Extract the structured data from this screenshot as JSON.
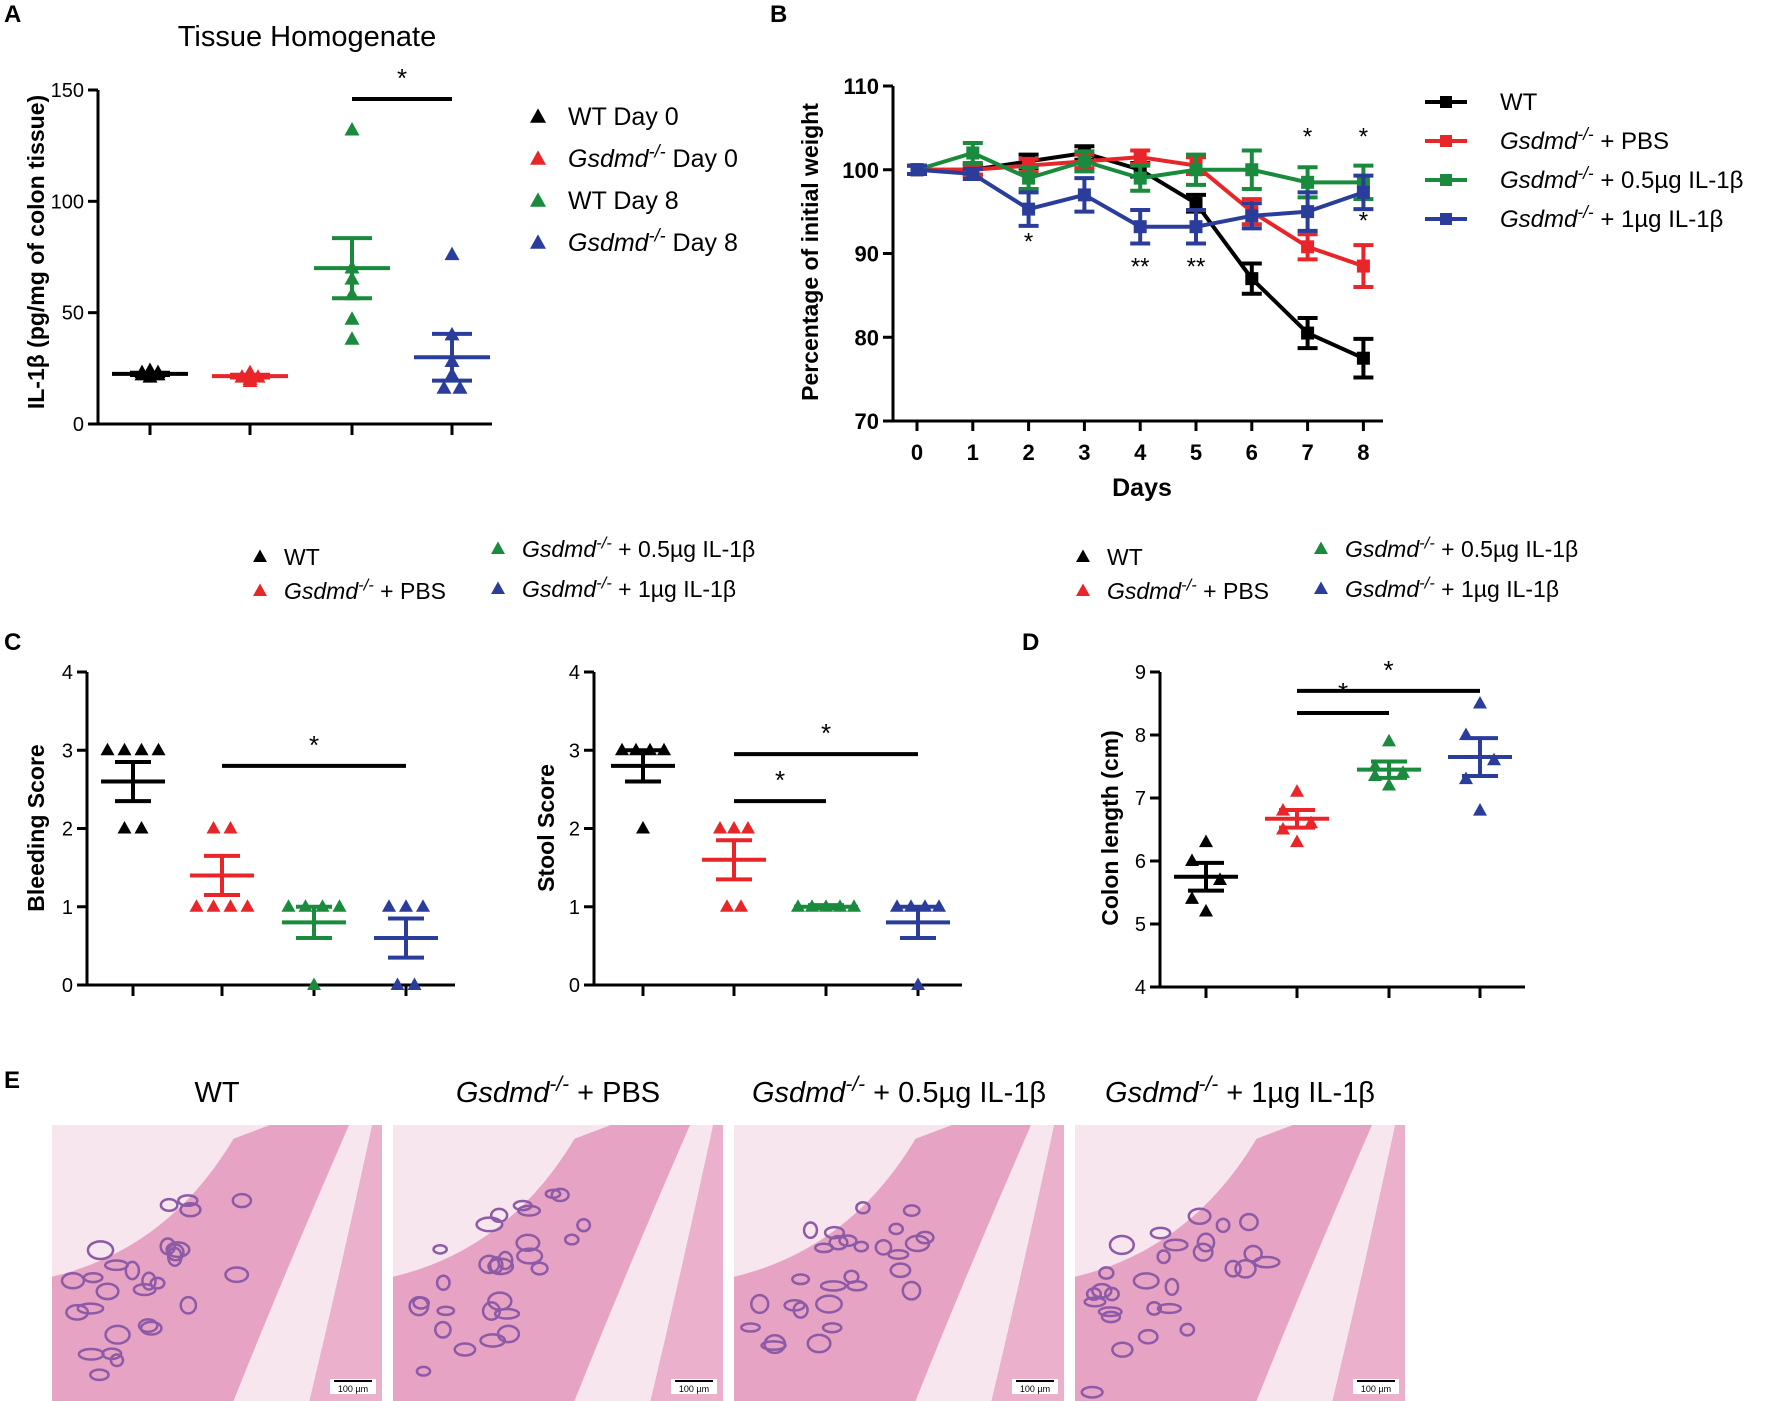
{
  "colors": {
    "black": "#000000",
    "red": "#e8262a",
    "green": "#1a8a3c",
    "blue": "#2b3d9b",
    "tissue_bg": "#f7e6ee",
    "tissue_pink": "#e7a3c3",
    "tissue_purple": "#8c5aa6"
  },
  "panel_letters": {
    "a": "A",
    "b": "B",
    "c": "C",
    "d": "D",
    "e": "E"
  },
  "legend_top": {
    "wt": "WT",
    "gs": "Gsdmd",
    "sup": "-/-",
    "pbs": "+ PBS",
    "low": "+ 0.5µg IL-1β",
    "high": "+ 1µg IL-1β"
  },
  "significance": {
    "star": "*",
    "double_star": "**"
  },
  "chart_data": [
    {
      "id": "A",
      "type": "scatter",
      "title": "Tissue Homogenate",
      "ylabel": "IL-1β  (pg/mg of colon tissue)",
      "ylim": [
        0,
        150
      ],
      "yticks": [
        "0",
        "50",
        "100",
        "150"
      ],
      "legend": [
        {
          "label": "WT Day 0",
          "color": "black",
          "italic": false
        },
        {
          "label": "Gsdmd",
          "sup": "-/-",
          "suffix": "Day 0",
          "color": "red",
          "italic": true
        },
        {
          "label": "WT Day 8",
          "color": "green",
          "italic": false
        },
        {
          "label": "Gsdmd",
          "sup": "-/-",
          "suffix": "Day 8",
          "color": "blue",
          "italic": true
        }
      ],
      "groups": [
        {
          "name": "WT Day 0",
          "color": "black",
          "points": [
            22,
            23,
            22,
            21,
            24,
            23
          ],
          "mean": 22.5,
          "sem": 0.5
        },
        {
          "name": "Gsdmd-/- Day 0",
          "color": "red",
          "points": [
            20,
            22,
            21,
            19,
            23,
            21
          ],
          "mean": 21.5,
          "sem": 0.6
        },
        {
          "name": "WT Day 8",
          "color": "green",
          "points": [
            132,
            70,
            65,
            58,
            47,
            38
          ],
          "mean": 70,
          "sem": 13.5
        },
        {
          "name": "Gsdmd-/- Day 8",
          "color": "blue",
          "points": [
            76,
            40,
            28,
            22,
            16,
            16
          ],
          "mean": 30,
          "sem": 10.5
        }
      ],
      "sig": [
        {
          "from": 2,
          "to": 3,
          "label": "*"
        }
      ]
    },
    {
      "id": "B",
      "type": "line",
      "ylabel": "Percentage of initial weight",
      "xlabel": "Days",
      "x": [
        0,
        1,
        2,
        3,
        4,
        5,
        6,
        7,
        8
      ],
      "ylim": [
        70,
        110
      ],
      "yticks": [
        "70",
        "80",
        "90",
        "100",
        "110"
      ],
      "series": [
        {
          "name": "WT",
          "color": "black",
          "values": [
            100,
            100,
            101,
            102,
            100,
            96,
            87,
            80.5,
            77.5
          ],
          "err": [
            0.5,
            0.6,
            0.8,
            0.8,
            0.8,
            1,
            1.8,
            1.8,
            2.3
          ]
        },
        {
          "name": "Gsdmd-/- + PBS",
          "color": "red",
          "values": [
            100,
            100,
            100.5,
            101,
            101.5,
            100.5,
            95,
            90.8,
            88.5
          ],
          "err": [
            0.5,
            0.6,
            0.8,
            0.8,
            0.8,
            1,
            1.5,
            1.5,
            2.5
          ]
        },
        {
          "name": "Gsdmd-/- + 0.5µg IL-1β",
          "color": "green",
          "values": [
            100,
            102,
            99,
            101,
            99,
            100,
            100,
            98.5,
            98.5
          ],
          "err": [
            0.5,
            1.2,
            1.3,
            1.2,
            1.5,
            1.8,
            2.3,
            1.8,
            2
          ]
        },
        {
          "name": "Gsdmd-/- + 1µg IL-1β",
          "color": "blue",
          "values": [
            100,
            99.5,
            95.3,
            97,
            93.2,
            93.2,
            94.5,
            95,
            97.3
          ],
          "err": [
            0.5,
            0.6,
            2,
            2,
            2,
            2,
            1.5,
            2.3,
            2
          ]
        }
      ],
      "annotations": [
        {
          "day": 2,
          "y": 90.5,
          "label": "*"
        },
        {
          "day": 4,
          "y": 87.5,
          "label": "**"
        },
        {
          "day": 5,
          "y": 87.5,
          "label": "**"
        },
        {
          "day": 7,
          "y": 103,
          "label": "*"
        },
        {
          "day": 8,
          "y": 103,
          "label": "*"
        },
        {
          "day": 8,
          "y": 93,
          "label": "*"
        }
      ]
    },
    {
      "id": "C1",
      "type": "scatter",
      "ylabel": "Bleeding Score",
      "ylim": [
        0,
        4
      ],
      "yticks": [
        "0",
        "1",
        "2",
        "3",
        "4"
      ],
      "groups": [
        {
          "color": "black",
          "points": [
            3,
            3,
            3,
            3,
            2,
            2
          ],
          "mean": 2.6,
          "sem": 0.25
        },
        {
          "color": "red",
          "points": [
            2,
            2,
            1,
            1,
            1,
            1
          ],
          "mean": 1.4,
          "sem": 0.25
        },
        {
          "color": "green",
          "points": [
            1,
            1,
            1,
            1,
            0
          ],
          "mean": 0.8,
          "sem": 0.2
        },
        {
          "color": "blue",
          "points": [
            1,
            1,
            1,
            0,
            0
          ],
          "mean": 0.6,
          "sem": 0.25
        }
      ],
      "sig": [
        {
          "from": 1,
          "to": 3,
          "y": 2.8,
          "label": "*"
        }
      ]
    },
    {
      "id": "C2",
      "type": "scatter",
      "ylabel": "Stool Score",
      "ylim": [
        0,
        4
      ],
      "yticks": [
        "0",
        "1",
        "2",
        "3",
        "4"
      ],
      "groups": [
        {
          "color": "black",
          "points": [
            3,
            3,
            3,
            3,
            2
          ],
          "mean": 2.8,
          "sem": 0.2
        },
        {
          "color": "red",
          "points": [
            2,
            2,
            2,
            1,
            1
          ],
          "mean": 1.6,
          "sem": 0.25
        },
        {
          "color": "green",
          "points": [
            1,
            1,
            1,
            1,
            1
          ],
          "mean": 1.0,
          "sem": 0.02
        },
        {
          "color": "blue",
          "points": [
            1,
            1,
            1,
            1,
            0
          ],
          "mean": 0.8,
          "sem": 0.2
        }
      ],
      "sig": [
        {
          "from": 1,
          "to": 3,
          "y": 2.95,
          "label": "*"
        },
        {
          "from": 1,
          "to": 2,
          "y": 2.35,
          "label": "*"
        }
      ]
    },
    {
      "id": "D",
      "type": "scatter",
      "ylabel": "Colon length (cm)",
      "ylim": [
        4,
        9
      ],
      "yticks": [
        "4",
        "5",
        "6",
        "7",
        "8",
        "9"
      ],
      "groups": [
        {
          "color": "black",
          "points": [
            6.3,
            6.0,
            5.7,
            5.4,
            5.2
          ],
          "mean": 5.75,
          "sem": 0.22
        },
        {
          "color": "red",
          "points": [
            7.1,
            6.8,
            6.6,
            6.5,
            6.3
          ],
          "mean": 6.67,
          "sem": 0.14
        },
        {
          "color": "green",
          "points": [
            7.9,
            7.5,
            7.4,
            7.35,
            7.2
          ],
          "mean": 7.45,
          "sem": 0.13
        },
        {
          "color": "blue",
          "points": [
            8.5,
            8.0,
            7.6,
            7.3,
            6.8
          ],
          "mean": 7.65,
          "sem": 0.3
        }
      ],
      "sig": [
        {
          "from": 1,
          "to": 3,
          "y": 8.7,
          "label": "*"
        },
        {
          "from": 1,
          "to": 2,
          "y": 8.35,
          "label": "*"
        }
      ]
    }
  ],
  "histology": {
    "titles": [
      {
        "main": "WT",
        "sup": "",
        "suffix": "",
        "italic": false
      },
      {
        "main": "Gsdmd",
        "sup": "-/-",
        "suffix": "+ PBS",
        "italic": true
      },
      {
        "main": "Gsdmd",
        "sup": "-/-",
        "suffix": "+ 0.5µg IL-1β",
        "italic": true
      },
      {
        "main": "Gsdmd",
        "sup": "-/-",
        "suffix": "+ 1µg IL-1β",
        "italic": true
      }
    ],
    "scale_bar": "100 µm"
  }
}
